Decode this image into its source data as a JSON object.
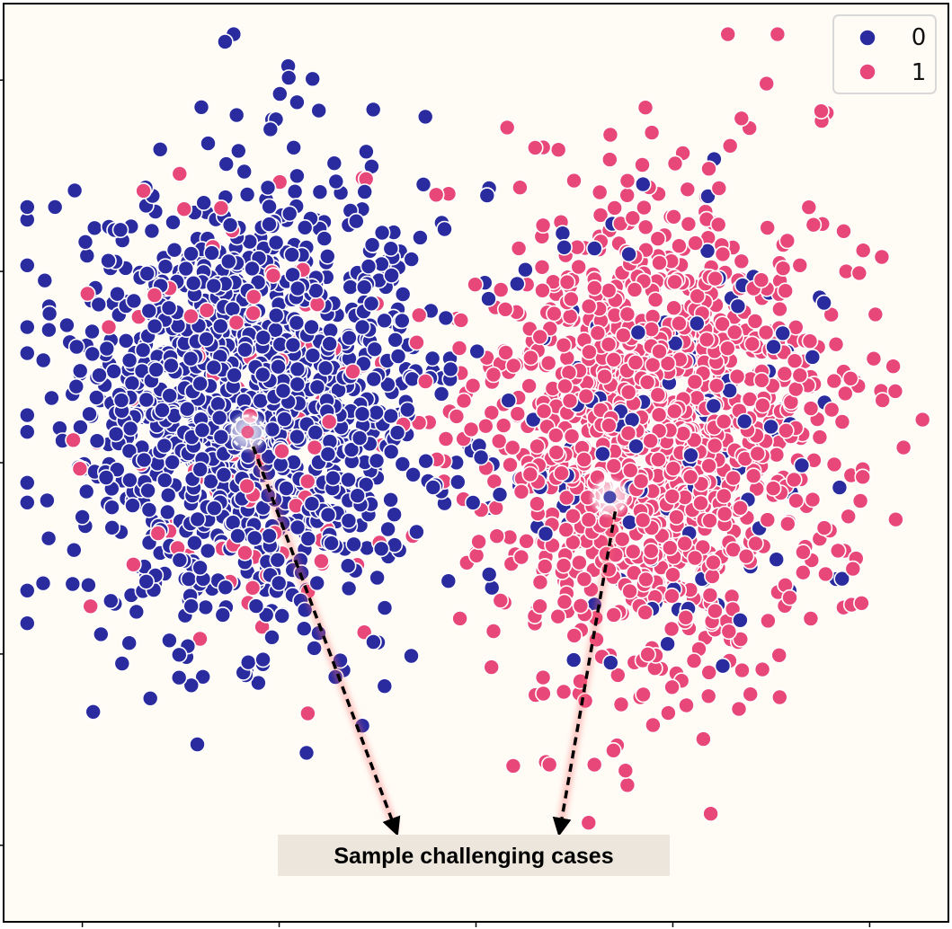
{
  "chart_data": {
    "type": "scatter",
    "title": "",
    "xlabel": "",
    "ylabel": "",
    "xlim": [
      -12,
      12
    ],
    "ylim": [
      -12,
      12
    ],
    "grid": false,
    "legend": {
      "placement": "top-right",
      "entries": [
        "0",
        "1"
      ]
    },
    "colors": {
      "0": "#2b2ba0",
      "1": "#e8477a",
      "background": "#fffbf5",
      "annotation_box": "#ece6dc"
    },
    "series": [
      {
        "name": "0",
        "center": [
          -5.6,
          1.6
        ],
        "spread": [
          2.3,
          3.0
        ],
        "count": 1400,
        "minority_mix": 0.1
      },
      {
        "name": "1",
        "center": [
          4.6,
          0.9
        ],
        "spread": [
          2.2,
          3.0
        ],
        "count": 1400,
        "minority_mix": 0.1
      }
    ],
    "highlights": [
      {
        "series": "1",
        "x": -5.8,
        "y": 0.8,
        "inside_series": "0"
      },
      {
        "series": "0",
        "x": 3.4,
        "y": -0.9,
        "inside_series": "1"
      }
    ],
    "annotation": {
      "text": "Sample challenging cases",
      "x": -2.0,
      "y": -10.5
    }
  }
}
